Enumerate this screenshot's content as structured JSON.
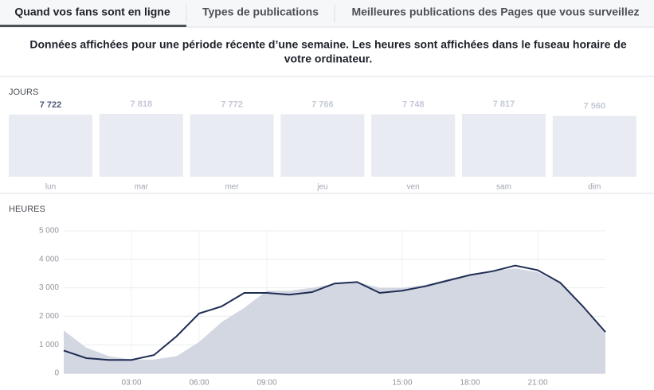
{
  "tabs": [
    "Quand vos fans sont en ligne",
    "Types de publications",
    "Meilleures publications des Pages que vous surveillez"
  ],
  "notice": [
    "Données affichées pour une période récente d’une semaine. Les heures sont affichées dans le fuseau horaire de",
    "votre ordinateur."
  ],
  "chart_data": [
    {
      "type": "bar",
      "title": "JOURS",
      "categories": [
        "lun",
        "mar",
        "mer",
        "jeu",
        "ven",
        "sam",
        "dim"
      ],
      "values": [
        7722,
        7818,
        7772,
        7766,
        7748,
        7817,
        7560
      ],
      "value_labels": [
        "7 722",
        "7 818",
        "7 772",
        "7 766",
        "7 748",
        "7 817",
        "7 560"
      ],
      "color": "#e9ebf2"
    },
    {
      "type": "line",
      "title": "HEURES",
      "x": [
        0,
        1,
        2,
        3,
        4,
        5,
        6,
        7,
        8,
        9,
        10,
        11,
        12,
        13,
        14,
        15,
        16,
        17,
        18,
        19,
        20,
        21,
        22,
        23,
        24
      ],
      "series": [
        {
          "color": "#1f2d54",
          "values": [
            800,
            530,
            470,
            470,
            640,
            1300,
            2100,
            2350,
            2820,
            2820,
            2760,
            2850,
            3150,
            3200,
            2820,
            2900,
            3050,
            3250,
            3450,
            3580,
            3780,
            3620,
            3180,
            2350,
            1450
          ]
        },
        {
          "color": "#d3d7e2",
          "values": [
            1500,
            900,
            600,
            480,
            480,
            600,
            1100,
            1800,
            2300,
            2900,
            2900,
            3000,
            3150,
            3200,
            3000,
            3000,
            3100,
            3300,
            3450,
            3600,
            3680,
            3550,
            3150,
            2300,
            1450
          ]
        }
      ],
      "xlim": [
        0,
        24
      ],
      "xticks": [
        {
          "value": 3,
          "label": "03:00"
        },
        {
          "value": 6,
          "label": "06:00"
        },
        {
          "value": 9,
          "label": "09:00"
        },
        {
          "value": 15,
          "label": "15:00"
        },
        {
          "value": 18,
          "label": "18:00"
        },
        {
          "value": 21,
          "label": "21:00"
        }
      ],
      "ylim": [
        0,
        5000
      ],
      "yticks": [
        0,
        {
          "value": 1000,
          "label": "1 000"
        },
        {
          "value": 2000,
          "label": "2 000"
        },
        {
          "value": 3000,
          "label": "3 000"
        },
        {
          "value": 4000,
          "label": "4 000"
        },
        {
          "value": 5000,
          "label": "5 000"
        }
      ],
      "grid": true
    }
  ]
}
